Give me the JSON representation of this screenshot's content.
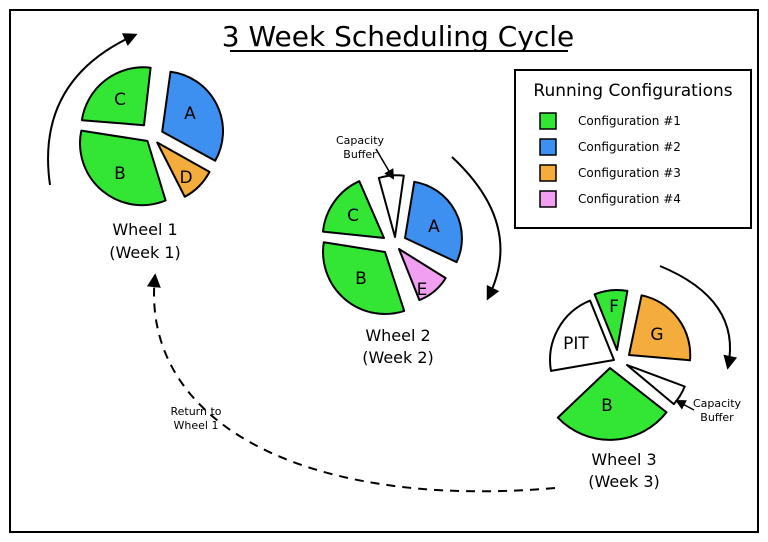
{
  "title": "3 Week Scheduling Cycle",
  "legend": {
    "title": "Running Configurations",
    "items": [
      {
        "label": "Configuration #1",
        "color": "#33e633"
      },
      {
        "label": "Configuration #2",
        "color": "#3d8ff0"
      },
      {
        "label": "Configuration #3",
        "color": "#f4ac3c"
      },
      {
        "label": "Configuration #4",
        "color": "#f1a0f1"
      }
    ]
  },
  "wheels": [
    {
      "caption_line1": "Wheel 1",
      "caption_line2": "(Week 1)",
      "segments": [
        {
          "label": "A",
          "color": "#3d8ff0"
        },
        {
          "label": "D",
          "color": "#f4ac3c"
        },
        {
          "label": "B",
          "color": "#33e633"
        },
        {
          "label": "C",
          "color": "#33e633"
        }
      ]
    },
    {
      "caption_line1": "Wheel 2",
      "caption_line2": "(Week 2)",
      "capacity_buffer_label_line1": "Capacity",
      "capacity_buffer_label_line2": "Buffer",
      "segments": [
        {
          "label": "",
          "color": "#ffffff"
        },
        {
          "label": "A",
          "color": "#3d8ff0"
        },
        {
          "label": "E",
          "color": "#f1a0f1"
        },
        {
          "label": "B",
          "color": "#33e633"
        },
        {
          "label": "C",
          "color": "#33e633"
        }
      ]
    },
    {
      "caption_line1": "Wheel 3",
      "caption_line2": "(Week 3)",
      "capacity_buffer_label_line1": "Capacity",
      "capacity_buffer_label_line2": "Buffer",
      "segments": [
        {
          "label": "F",
          "color": "#33e633"
        },
        {
          "label": "G",
          "color": "#f4ac3c"
        },
        {
          "label": "",
          "color": "#ffffff"
        },
        {
          "label": "B",
          "color": "#33e633"
        },
        {
          "label": "PIT",
          "color": "#ffffff"
        }
      ]
    }
  ],
  "return_label_line1": "Return to",
  "return_label_line2": "Wheel 1"
}
